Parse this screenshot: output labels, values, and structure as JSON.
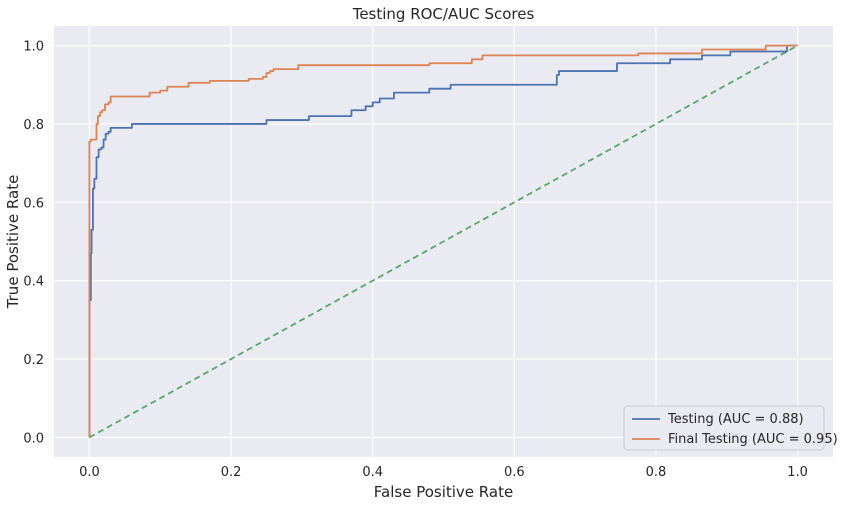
{
  "chart_data": {
    "type": "line",
    "title": "Testing ROC/AUC Scores",
    "xlabel": "False Positive Rate",
    "ylabel": "True Positive Rate",
    "xlim": [
      -0.05,
      1.05
    ],
    "ylim": [
      -0.05,
      1.05
    ],
    "xticks": [
      0.0,
      0.2,
      0.4,
      0.6,
      0.8,
      1.0
    ],
    "yticks": [
      0.0,
      0.2,
      0.4,
      0.6,
      0.8,
      1.0
    ],
    "xtick_labels": [
      "0.0",
      "0.2",
      "0.4",
      "0.6",
      "0.8",
      "1.0"
    ],
    "ytick_labels": [
      "0.0",
      "0.2",
      "0.4",
      "0.6",
      "0.8",
      "1.0"
    ],
    "grid": true,
    "legend_position": "bottom-right",
    "background": "#eaeaf2",
    "series": [
      {
        "name": "Testing (AUC = 0.88)",
        "color": "#4c72b0",
        "style": "solid",
        "x": [
          0,
          0,
          0.002,
          0.002,
          0.003,
          0.003,
          0.005,
          0.005,
          0.007,
          0.007,
          0.01,
          0.01,
          0.013,
          0.013,
          0.017,
          0.017,
          0.02,
          0.02,
          0.023,
          0.023,
          0.027,
          0.027,
          0.03,
          0.03,
          0.033,
          0.033,
          0.06,
          0.06,
          0.25,
          0.25,
          0.31,
          0.31,
          0.37,
          0.37,
          0.39,
          0.39,
          0.4,
          0.4,
          0.41,
          0.41,
          0.43,
          0.43,
          0.48,
          0.48,
          0.51,
          0.51,
          0.66,
          0.66,
          0.663,
          0.663,
          0.745,
          0.745,
          0.82,
          0.82,
          0.865,
          0.865,
          0.905,
          0.905,
          0.985,
          0.985,
          1.0
        ],
        "y": [
          0,
          0.35,
          0.35,
          0.47,
          0.47,
          0.53,
          0.53,
          0.635,
          0.635,
          0.66,
          0.66,
          0.715,
          0.715,
          0.735,
          0.735,
          0.74,
          0.74,
          0.76,
          0.76,
          0.775,
          0.775,
          0.78,
          0.78,
          0.79,
          0.79,
          0.79,
          0.79,
          0.8,
          0.8,
          0.81,
          0.81,
          0.82,
          0.82,
          0.835,
          0.835,
          0.845,
          0.845,
          0.855,
          0.855,
          0.865,
          0.865,
          0.88,
          0.88,
          0.89,
          0.89,
          0.9,
          0.9,
          0.925,
          0.925,
          0.935,
          0.935,
          0.955,
          0.955,
          0.965,
          0.965,
          0.975,
          0.975,
          0.985,
          0.985,
          1.0,
          1.0
        ]
      },
      {
        "name": "Final Testing (AUC = 0.95)",
        "color": "#dd8452",
        "style": "solid",
        "x": [
          0,
          0,
          0.002,
          0.002,
          0.005,
          0.005,
          0.01,
          0.01,
          0.012,
          0.012,
          0.015,
          0.015,
          0.018,
          0.018,
          0.022,
          0.022,
          0.027,
          0.027,
          0.03,
          0.03,
          0.045,
          0.045,
          0.085,
          0.085,
          0.1,
          0.1,
          0.11,
          0.11,
          0.14,
          0.14,
          0.17,
          0.17,
          0.225,
          0.225,
          0.245,
          0.245,
          0.25,
          0.25,
          0.255,
          0.255,
          0.26,
          0.26,
          0.295,
          0.295,
          0.48,
          0.48,
          0.54,
          0.54,
          0.555,
          0.555,
          0.555,
          0.555,
          0.775,
          0.775,
          0.865,
          0.865,
          0.955,
          0.955,
          1.0
        ],
        "y": [
          0,
          0.755,
          0.755,
          0.76,
          0.76,
          0.76,
          0.76,
          0.8,
          0.8,
          0.82,
          0.82,
          0.83,
          0.83,
          0.835,
          0.835,
          0.85,
          0.85,
          0.855,
          0.855,
          0.87,
          0.87,
          0.87,
          0.87,
          0.88,
          0.88,
          0.885,
          0.885,
          0.895,
          0.895,
          0.905,
          0.905,
          0.91,
          0.91,
          0.915,
          0.915,
          0.92,
          0.92,
          0.93,
          0.93,
          0.935,
          0.935,
          0.94,
          0.94,
          0.95,
          0.95,
          0.955,
          0.955,
          0.965,
          0.965,
          0.97,
          0.97,
          0.975,
          0.975,
          0.98,
          0.98,
          0.99,
          0.99,
          1.0,
          1.0
        ]
      },
      {
        "name": "",
        "color": "#55a868",
        "style": "dashed",
        "x": [
          0,
          1
        ],
        "y": [
          0,
          1
        ]
      }
    ]
  }
}
